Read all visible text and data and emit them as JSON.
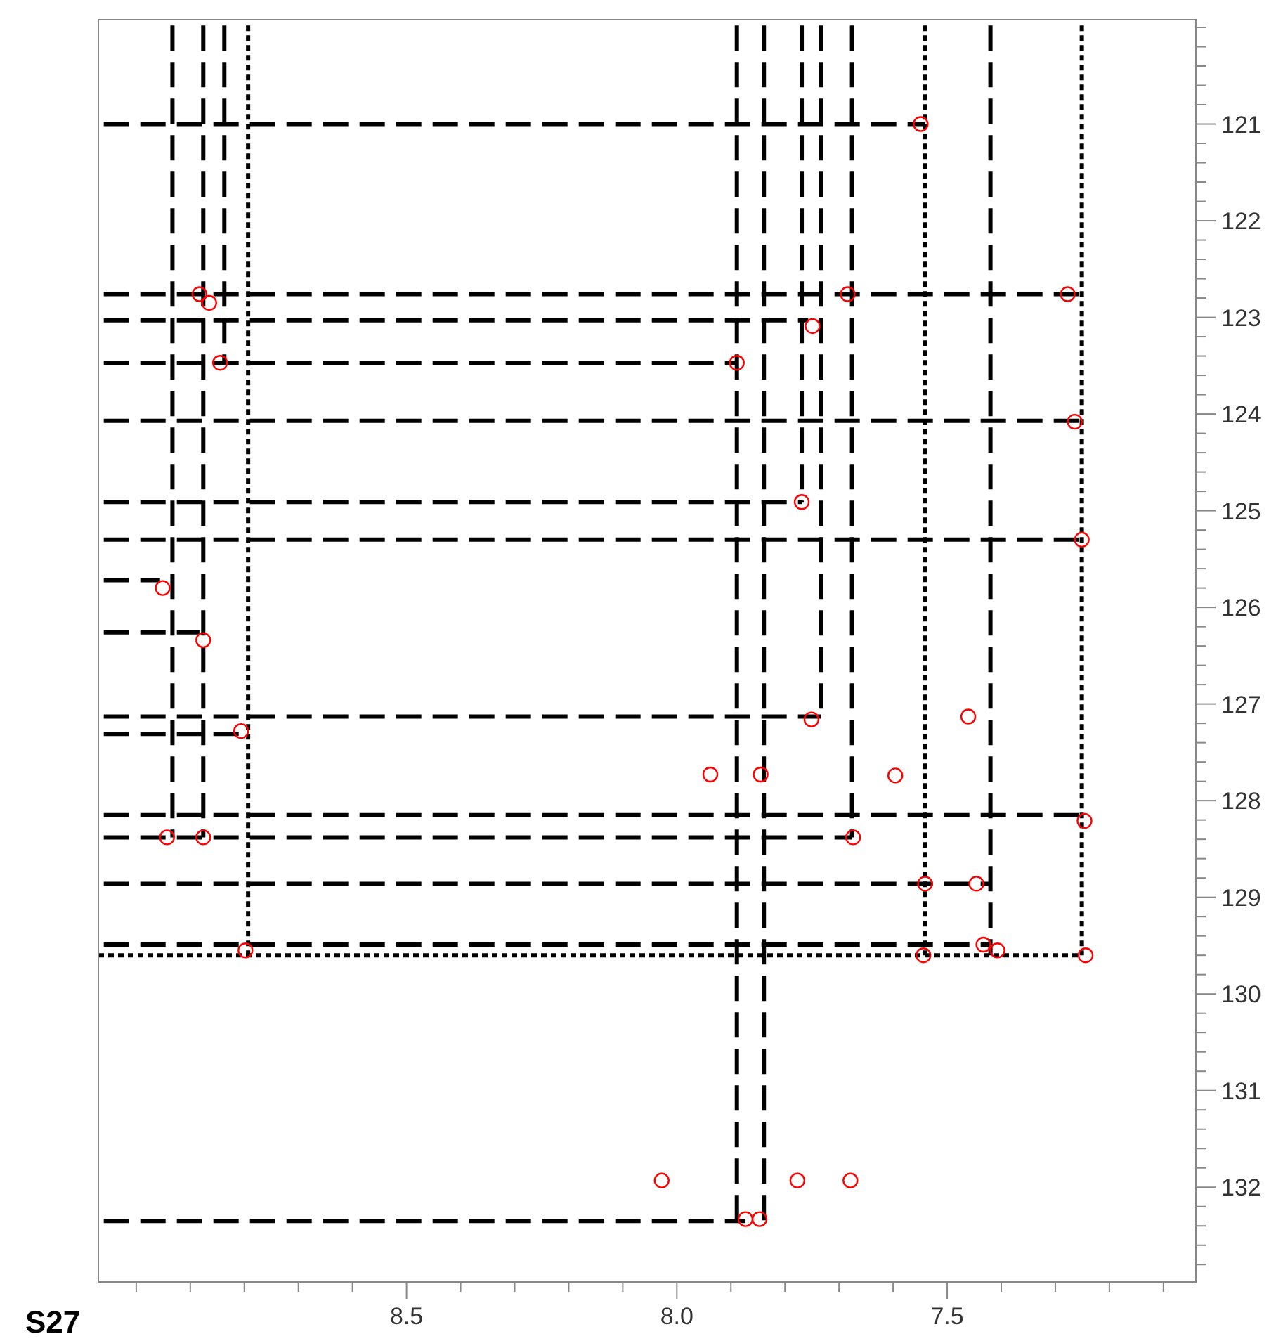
{
  "chart_data": {
    "type": "scatter",
    "xlim": [
      9.07,
      7.04
    ],
    "ylim": [
      132.98,
      119.92
    ],
    "xticks": [
      {
        "value": 9.0,
        "label": null
      },
      {
        "value": 8.9,
        "label": null
      },
      {
        "value": 8.8,
        "label": null
      },
      {
        "value": 8.7,
        "label": null
      },
      {
        "value": 8.6,
        "label": null
      },
      8.5,
      {
        "value": 8.4,
        "label": null
      },
      {
        "value": 8.3,
        "label": null
      },
      {
        "value": 8.2,
        "label": null
      },
      {
        "value": 8.1,
        "label": null
      },
      {
        "value": 8.0,
        "label": "8.0"
      },
      {
        "value": 7.9,
        "label": null
      },
      {
        "value": 7.8,
        "label": null
      },
      {
        "value": 7.7,
        "label": null
      },
      {
        "value": 7.6,
        "label": null
      },
      7.5,
      {
        "value": 7.4,
        "label": null
      },
      {
        "value": 7.3,
        "label": null
      },
      {
        "value": 7.2,
        "label": null
      },
      {
        "value": 7.1,
        "label": null
      }
    ],
    "yticks": [
      {
        "value": 120.0,
        "label": null
      },
      {
        "value": 120.2,
        "label": null
      },
      {
        "value": 120.4,
        "label": null
      },
      {
        "value": 120.6,
        "label": null
      },
      {
        "value": 120.8,
        "label": null
      },
      121,
      {
        "value": 121.2,
        "label": null
      },
      {
        "value": 121.4,
        "label": null
      },
      {
        "value": 121.6,
        "label": null
      },
      {
        "value": 121.8,
        "label": null
      },
      122,
      {
        "value": 122.2,
        "label": null
      },
      {
        "value": 122.4,
        "label": null
      },
      {
        "value": 122.6,
        "label": null
      },
      {
        "value": 122.8,
        "label": null
      },
      123,
      {
        "value": 123.2,
        "label": null
      },
      {
        "value": 123.4,
        "label": null
      },
      {
        "value": 123.6,
        "label": null
      },
      {
        "value": 123.8,
        "label": null
      },
      124,
      {
        "value": 124.2,
        "label": null
      },
      {
        "value": 124.4,
        "label": null
      },
      {
        "value": 124.6,
        "label": null
      },
      {
        "value": 124.8,
        "label": null
      },
      125,
      {
        "value": 125.2,
        "label": null
      },
      {
        "value": 125.4,
        "label": null
      },
      {
        "value": 125.6,
        "label": null
      },
      {
        "value": 125.8,
        "label": null
      },
      126,
      {
        "value": 126.2,
        "label": null
      },
      {
        "value": 126.4,
        "label": null
      },
      {
        "value": 126.6,
        "label": null
      },
      {
        "value": 126.8,
        "label": null
      },
      127,
      {
        "value": 127.2,
        "label": null
      },
      {
        "value": 127.4,
        "label": null
      },
      {
        "value": 127.6,
        "label": null
      },
      {
        "value": 127.8,
        "label": null
      },
      128,
      {
        "value": 128.2,
        "label": null
      },
      {
        "value": 128.4,
        "label": null
      },
      {
        "value": 128.6,
        "label": null
      },
      {
        "value": 128.8,
        "label": null
      },
      129,
      {
        "value": 129.2,
        "label": null
      },
      {
        "value": 129.4,
        "label": null
      },
      {
        "value": 129.6,
        "label": null
      },
      {
        "value": 129.8,
        "label": null
      },
      130,
      {
        "value": 130.2,
        "label": null
      },
      {
        "value": 130.4,
        "label": null
      },
      {
        "value": 130.6,
        "label": null
      },
      {
        "value": 130.8,
        "label": null
      },
      131,
      {
        "value": 131.2,
        "label": null
      },
      {
        "value": 131.4,
        "label": null
      },
      {
        "value": 131.6,
        "label": null
      },
      {
        "value": 131.8,
        "label": null
      },
      132,
      {
        "value": 132.2,
        "label": null
      },
      {
        "value": 132.4,
        "label": null
      },
      {
        "value": 132.6,
        "label": null
      },
      {
        "value": 132.8,
        "label": null
      }
    ],
    "grid": false,
    "annotations": [
      "S27"
    ],
    "series": [
      {
        "color": "#ff0000",
        "marker": "circle",
        "x": [
          8.883,
          8.865,
          8.845,
          8.951,
          8.876,
          8.806,
          8.943,
          8.876,
          8.798,
          7.889,
          7.749,
          7.769,
          7.751,
          7.684,
          7.674,
          7.549,
          7.277,
          7.264,
          7.251,
          7.246,
          7.461,
          7.541,
          7.446,
          7.544,
          7.433,
          7.407,
          7.244,
          7.873,
          7.847,
          8.028,
          7.777,
          7.679,
          7.938,
          7.845,
          7.596
        ],
        "values": [
          122.76,
          122.85,
          123.47,
          125.8,
          126.34,
          127.28,
          128.38,
          128.38,
          129.55,
          123.47,
          123.09,
          124.91,
          127.16,
          122.76,
          128.38,
          121.0,
          122.76,
          124.08,
          125.3,
          128.21,
          127.13,
          128.86,
          128.86,
          129.6,
          129.49,
          129.55,
          129.6,
          132.33,
          132.33,
          131.93,
          131.93,
          131.93,
          127.73,
          127.73,
          127.74
        ]
      },
      {
        "type": "line",
        "color": "#000000",
        "line_style": "dashed",
        "x": [
          8.933,
          8.933
        ],
        "values": [
          119.98,
          128.38
        ]
      },
      {
        "type": "line",
        "color": "#000000",
        "line_style": "dashed",
        "x": [
          8.876,
          8.876
        ],
        "values": [
          119.98,
          128.38
        ]
      },
      {
        "type": "line",
        "color": "#000000",
        "line_style": "dashed",
        "x": [
          8.837,
          8.837
        ],
        "values": [
          119.98,
          123.47
        ]
      },
      {
        "type": "line",
        "color": "#000000",
        "line_style": "dotted",
        "x": [
          8.793,
          8.793
        ],
        "values": [
          119.98,
          129.6
        ]
      },
      {
        "type": "line",
        "color": "#000000",
        "line_style": "dashed",
        "x": [
          7.889,
          7.889
        ],
        "values": [
          119.98,
          132.35
        ]
      },
      {
        "type": "line",
        "color": "#000000",
        "line_style": "dashed",
        "x": [
          7.839,
          7.839
        ],
        "values": [
          119.98,
          132.35
        ]
      },
      {
        "type": "line",
        "color": "#000000",
        "line_style": "dashed",
        "x": [
          7.769,
          7.769
        ],
        "values": [
          119.98,
          124.91
        ]
      },
      {
        "type": "line",
        "color": "#000000",
        "line_style": "dashed",
        "x": [
          7.733,
          7.733
        ],
        "values": [
          119.98,
          127.13
        ]
      },
      {
        "type": "line",
        "color": "#000000",
        "line_style": "dashed",
        "x": [
          7.676,
          7.676
        ],
        "values": [
          119.98,
          128.38
        ]
      },
      {
        "type": "line",
        "color": "#000000",
        "line_style": "dotted",
        "x": [
          7.541,
          7.541
        ],
        "values": [
          119.98,
          129.6
        ]
      },
      {
        "type": "line",
        "color": "#000000",
        "line_style": "dashed",
        "x": [
          7.42,
          7.42
        ],
        "values": [
          119.98,
          129.6
        ]
      },
      {
        "type": "line",
        "color": "#000000",
        "line_style": "dotted",
        "x": [
          7.251,
          7.251
        ],
        "values": [
          119.98,
          129.6
        ]
      },
      {
        "type": "line",
        "color": "#000000",
        "line_style": "dashed",
        "x": [
          9.06,
          7.541
        ],
        "values": [
          121.0,
          121.0
        ]
      },
      {
        "type": "line",
        "color": "#000000",
        "line_style": "dashed",
        "x": [
          9.06,
          7.251
        ],
        "values": [
          122.76,
          122.76
        ]
      },
      {
        "type": "line",
        "color": "#000000",
        "line_style": "dashed",
        "x": [
          9.06,
          7.757
        ],
        "values": [
          123.03,
          123.03
        ]
      },
      {
        "type": "line",
        "color": "#000000",
        "line_style": "dashed",
        "x": [
          9.06,
          7.889
        ],
        "values": [
          123.47,
          123.47
        ]
      },
      {
        "type": "line",
        "color": "#000000",
        "line_style": "dashed",
        "x": [
          9.06,
          7.251
        ],
        "values": [
          124.07,
          124.07
        ]
      },
      {
        "type": "line",
        "color": "#000000",
        "line_style": "dashed",
        "x": [
          9.06,
          7.769
        ],
        "values": [
          124.91,
          124.91
        ]
      },
      {
        "type": "line",
        "color": "#000000",
        "line_style": "dashed",
        "x": [
          9.06,
          7.251
        ],
        "values": [
          125.3,
          125.3
        ]
      },
      {
        "type": "line",
        "color": "#000000",
        "line_style": "dashed",
        "x": [
          9.06,
          8.956
        ],
        "values": [
          125.72,
          125.72
        ]
      },
      {
        "type": "line",
        "color": "#000000",
        "line_style": "dashed",
        "x": [
          9.06,
          8.883
        ],
        "values": [
          126.26,
          126.26
        ]
      },
      {
        "type": "line",
        "color": "#000000",
        "line_style": "dashed",
        "x": [
          9.06,
          7.733
        ],
        "values": [
          127.13,
          127.13
        ]
      },
      {
        "type": "line",
        "color": "#000000",
        "line_style": "dashed",
        "x": [
          9.06,
          8.806
        ],
        "values": [
          127.31,
          127.31
        ]
      },
      {
        "type": "line",
        "color": "#000000",
        "line_style": "dashed",
        "x": [
          9.06,
          7.251
        ],
        "values": [
          128.15,
          128.15
        ]
      },
      {
        "type": "line",
        "color": "#000000",
        "line_style": "dashed",
        "x": [
          9.06,
          7.676
        ],
        "values": [
          128.38,
          128.38
        ]
      },
      {
        "type": "line",
        "color": "#000000",
        "line_style": "dashed",
        "x": [
          9.06,
          7.42
        ],
        "values": [
          128.86,
          128.86
        ]
      },
      {
        "type": "line",
        "color": "#000000",
        "line_style": "dashed",
        "x": [
          9.06,
          7.42
        ],
        "values": [
          129.49,
          129.49
        ]
      },
      {
        "type": "line",
        "color": "#000000",
        "line_style": "dotted",
        "x": [
          9.07,
          7.251
        ],
        "values": [
          129.6,
          129.6
        ]
      },
      {
        "type": "line",
        "color": "#000000",
        "line_style": "dashed",
        "x": [
          9.06,
          7.873
        ],
        "values": [
          132.35,
          132.35
        ]
      }
    ]
  }
}
